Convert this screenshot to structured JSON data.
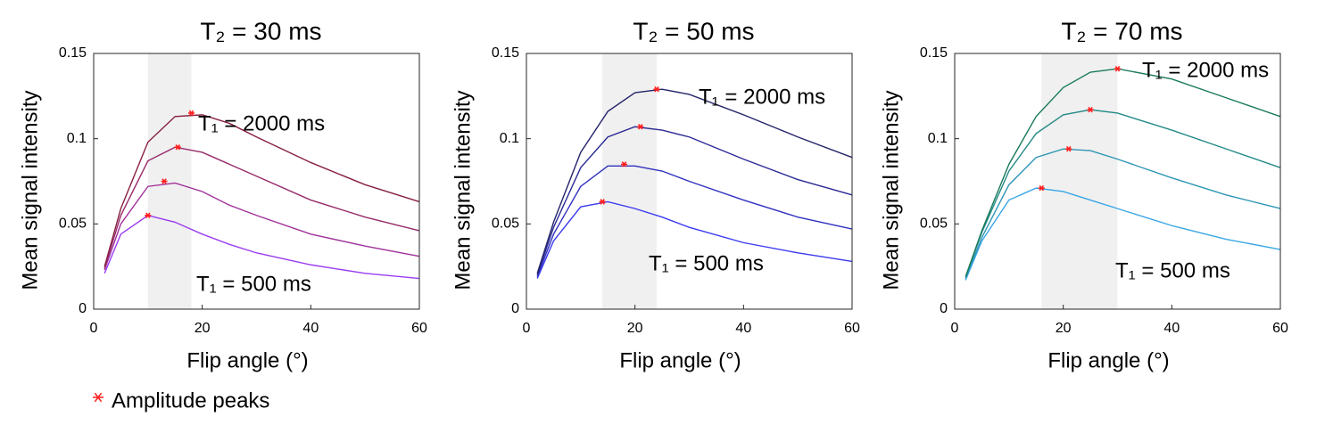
{
  "chart_data": [
    {
      "type": "line",
      "title": "T₂ = 30 ms",
      "x_label": "Flip angle (°)",
      "y_label": "Mean signal intensity",
      "xlim": [
        0,
        60
      ],
      "ylim": [
        0,
        0.15
      ],
      "xticks": [
        0,
        20,
        40,
        60
      ],
      "yticks": [
        0,
        0.05,
        0.1,
        0.15
      ],
      "highlight": [
        10,
        18
      ],
      "x": [
        2,
        5,
        10,
        15,
        20,
        25,
        30,
        40,
        50,
        60
      ],
      "series": [
        {
          "color": "#9b3cf0",
          "values": [
            0.021,
            0.044,
            0.055,
            0.051,
            0.044,
            0.038,
            0.033,
            0.026,
            0.021,
            0.018
          ]
        },
        {
          "color": "#a0309a",
          "values": [
            0.023,
            0.05,
            0.072,
            0.074,
            0.069,
            0.061,
            0.055,
            0.044,
            0.037,
            0.031
          ]
        },
        {
          "color": "#962a6a",
          "values": [
            0.024,
            0.055,
            0.087,
            0.095,
            0.092,
            0.085,
            0.078,
            0.064,
            0.054,
            0.046
          ]
        },
        {
          "color": "#86203e",
          "values": [
            0.025,
            0.059,
            0.098,
            0.113,
            0.114,
            0.109,
            0.101,
            0.086,
            0.073,
            0.063
          ]
        }
      ],
      "annotations": [
        "T₁ = 2000 ms",
        "T₁ = 500 ms"
      ],
      "peaks": {
        "name": "Amplitude peaks",
        "color": "#ff2020",
        "x": [
          10,
          13,
          15.5,
          18
        ],
        "y": [
          0.055,
          0.075,
          0.095,
          0.115
        ]
      }
    },
    {
      "type": "line",
      "title": "T₂ = 50 ms",
      "x_label": "Flip angle (°)",
      "y_label": "Mean signal intensity",
      "xlim": [
        0,
        60
      ],
      "ylim": [
        0,
        0.15
      ],
      "xticks": [
        0,
        20,
        40,
        60
      ],
      "yticks": [
        0,
        0.05,
        0.1,
        0.15
      ],
      "highlight": [
        14,
        24
      ],
      "x": [
        2,
        5,
        10,
        15,
        20,
        25,
        30,
        40,
        50,
        60
      ],
      "series": [
        {
          "color": "#3a3aee",
          "values": [
            0.018,
            0.04,
            0.06,
            0.063,
            0.059,
            0.054,
            0.048,
            0.039,
            0.033,
            0.028
          ]
        },
        {
          "color": "#3030c0",
          "values": [
            0.019,
            0.044,
            0.072,
            0.084,
            0.084,
            0.081,
            0.075,
            0.064,
            0.054,
            0.047
          ]
        },
        {
          "color": "#2a2a94",
          "values": [
            0.02,
            0.048,
            0.083,
            0.101,
            0.107,
            0.105,
            0.101,
            0.088,
            0.076,
            0.067
          ]
        },
        {
          "color": "#24246a",
          "values": [
            0.021,
            0.051,
            0.092,
            0.116,
            0.127,
            0.129,
            0.126,
            0.114,
            0.101,
            0.089
          ]
        }
      ],
      "annotations": [
        "T₁ = 2000 ms",
        "T₁ = 500 ms"
      ],
      "peaks": {
        "color": "#ff2020",
        "x": [
          14,
          18,
          21,
          24
        ],
        "y": [
          0.063,
          0.085,
          0.107,
          0.129
        ]
      }
    },
    {
      "type": "line",
      "title": "T₂ = 70 ms",
      "x_label": "Flip angle (°)",
      "y_label": "Mean signal intensity",
      "xlim": [
        0,
        60
      ],
      "ylim": [
        0,
        0.15
      ],
      "xticks": [
        0,
        20,
        40,
        60
      ],
      "yticks": [
        0,
        0.05,
        0.1,
        0.15
      ],
      "highlight": [
        16,
        30
      ],
      "x": [
        2,
        5,
        10,
        15,
        20,
        25,
        30,
        40,
        50,
        60
      ],
      "series": [
        {
          "color": "#3aa6e6",
          "values": [
            0.017,
            0.04,
            0.064,
            0.071,
            0.069,
            0.064,
            0.059,
            0.049,
            0.041,
            0.035
          ]
        },
        {
          "color": "#2e96b4",
          "values": [
            0.018,
            0.042,
            0.073,
            0.089,
            0.094,
            0.093,
            0.088,
            0.077,
            0.067,
            0.059
          ]
        },
        {
          "color": "#248a86",
          "values": [
            0.019,
            0.045,
            0.081,
            0.103,
            0.114,
            0.117,
            0.115,
            0.105,
            0.094,
            0.083
          ]
        },
        {
          "color": "#1a7a5c",
          "values": [
            0.019,
            0.046,
            0.085,
            0.113,
            0.13,
            0.139,
            0.141,
            0.135,
            0.124,
            0.113
          ]
        }
      ],
      "annotations": [
        "T₁ = 2000 ms",
        "T₁ = 500 ms"
      ],
      "peaks": {
        "color": "#ff2020",
        "x": [
          16,
          21,
          25,
          30
        ],
        "y": [
          0.071,
          0.094,
          0.117,
          0.141
        ]
      }
    }
  ]
}
